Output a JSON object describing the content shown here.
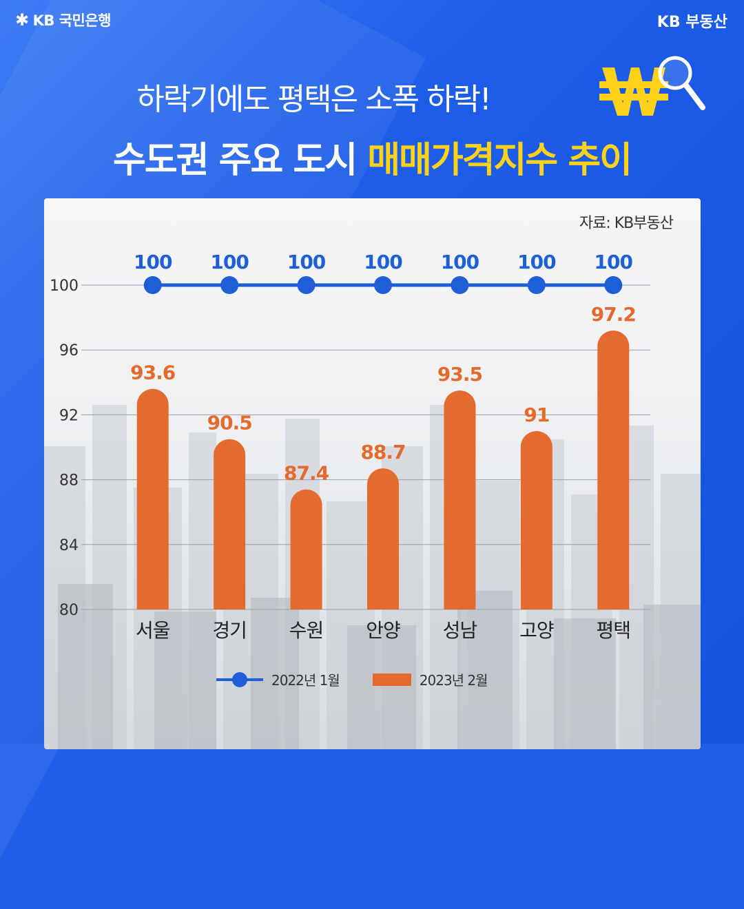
{
  "header": {
    "brand_left": "KB 국민은행",
    "brand_right": "KB 부동산",
    "subtitle": "하락기에도 평택은 소폭 하락!",
    "title_main": "수도권 주요 도시",
    "title_highlight": "매매가격지수 추이",
    "icons": [
      "kb-star-icon",
      "won-sign-icon",
      "magnifier-icon"
    ]
  },
  "source_note": "자료: KB부동산",
  "colors": {
    "background": "#1f5fe8",
    "highlight": "#ffd21a",
    "line": "#1e5fd8",
    "bar": "#e46a2e"
  },
  "legend": {
    "line_label": "2022년 1월",
    "bar_label": "2023년 2월"
  },
  "chart_data": {
    "type": "bar",
    "categories": [
      "서울",
      "경기",
      "수원",
      "안양",
      "성남",
      "고양",
      "평택"
    ],
    "series": [
      {
        "name": "2022년 1월",
        "type": "line",
        "values": [
          100,
          100,
          100,
          100,
          100,
          100,
          100
        ]
      },
      {
        "name": "2023년 2월",
        "type": "bar",
        "values": [
          93.6,
          90.5,
          87.4,
          88.7,
          93.5,
          91,
          97.2
        ]
      }
    ],
    "yticks": [
      80,
      84,
      88,
      92,
      96,
      100
    ],
    "ylim": [
      80,
      100
    ],
    "grid": true,
    "legend_position": "bottom"
  }
}
